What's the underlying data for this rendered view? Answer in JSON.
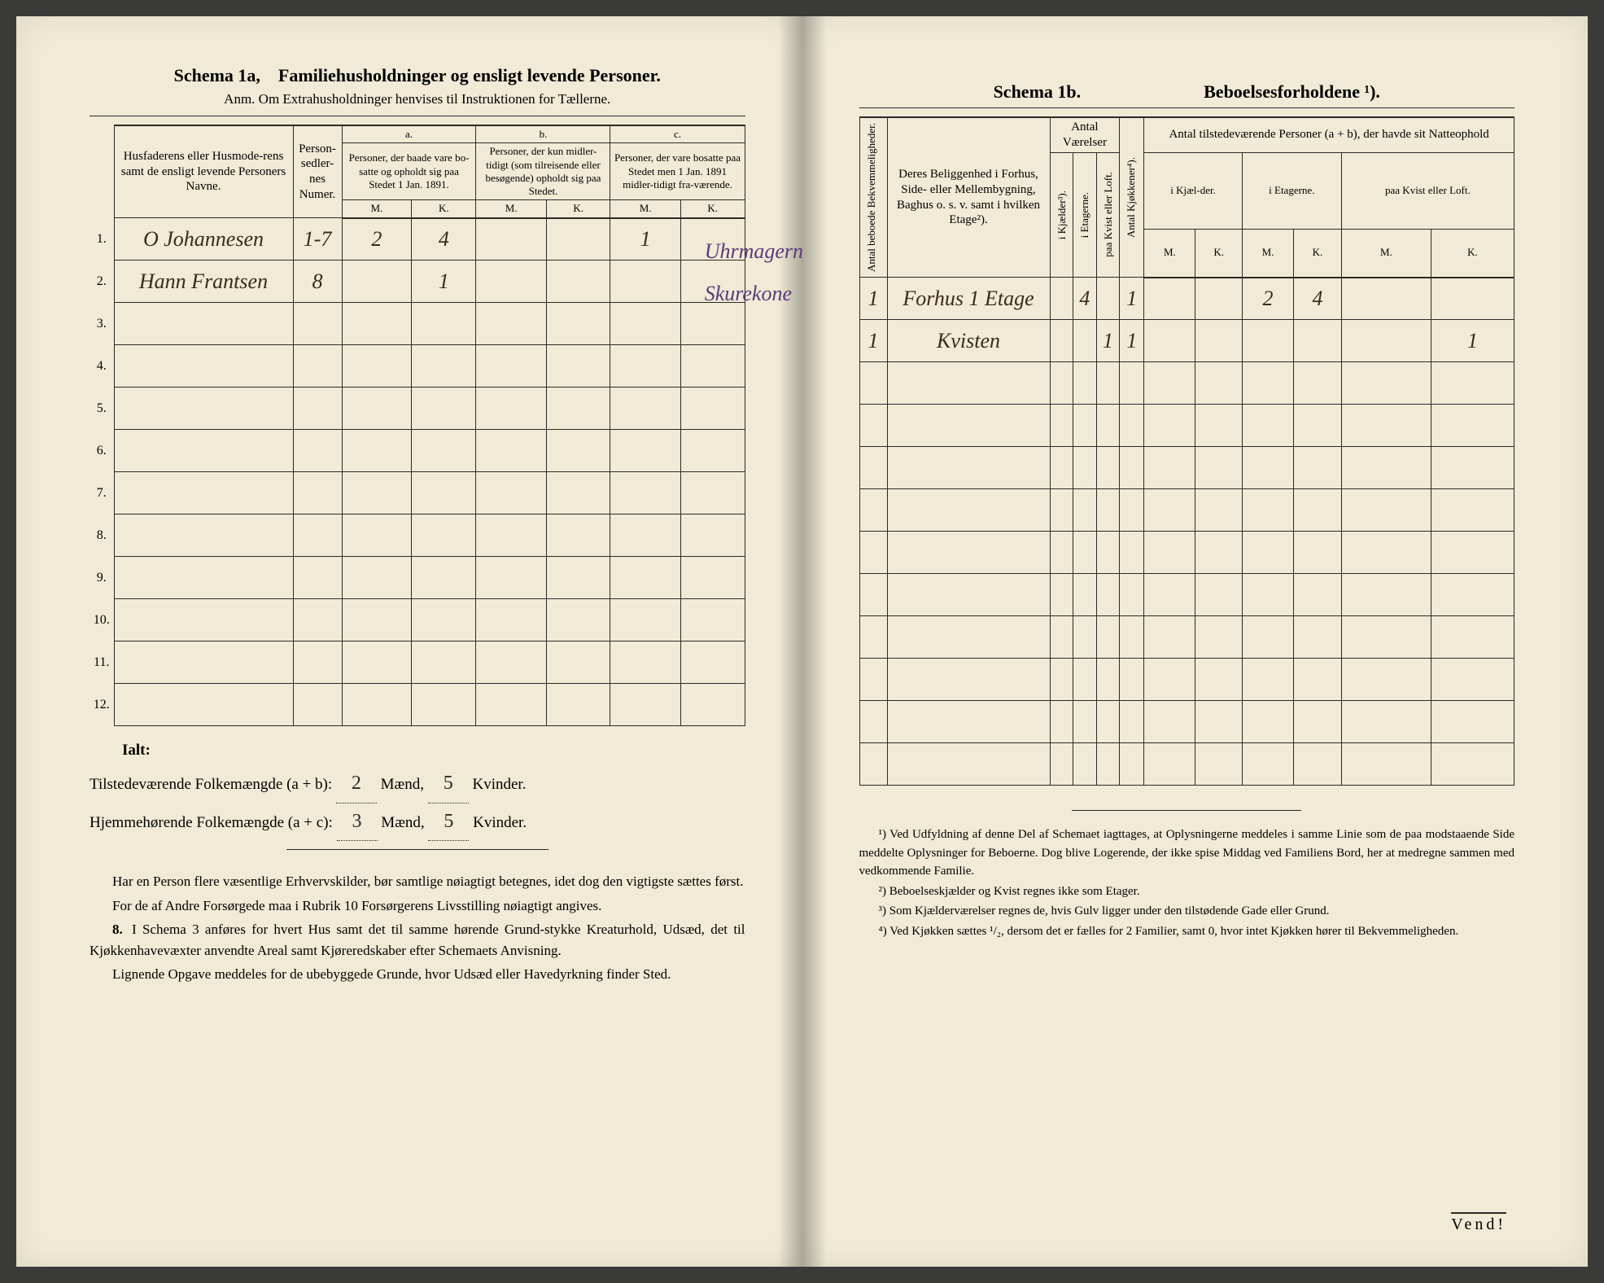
{
  "left": {
    "schema_label": "Schema 1a,",
    "title": "Familiehusholdninger og ensligt levende Personer.",
    "anm": "Anm. Om Extrahusholdninger henvises til Instruktionen for Tællerne.",
    "head_name": "Husfaderens eller Husmode-rens samt de ensligt levende Personers Navne.",
    "head_numer": "Person-sedler-nes Numer.",
    "head_a": "a.",
    "head_a_text": "Personer, der baade vare bo-satte og opholdt sig paa Stedet 1 Jan. 1891.",
    "head_b": "b.",
    "head_b_text": "Personer, der kun midler-tidigt (som tilreisende eller besøgende) opholdt sig paa Stedet.",
    "head_c": "c.",
    "head_c_text": "Personer, der vare bosatte paa Stedet men 1 Jan. 1891 midler-tidigt fra-værende.",
    "M": "M.",
    "K": "K.",
    "rows": [
      {
        "n": "1.",
        "name": "O Johannesen",
        "numer": "1-7",
        "aM": "2",
        "aK": "4",
        "bM": "",
        "bK": "",
        "cM": "1",
        "note": "Uhrmagern"
      },
      {
        "n": "2.",
        "name": "Hann Frantsen",
        "numer": "8",
        "aM": "",
        "aK": "1",
        "bM": "",
        "bK": "",
        "cM": "",
        "note": "Skurekone"
      },
      {
        "n": "3."
      },
      {
        "n": "4."
      },
      {
        "n": "5."
      },
      {
        "n": "6."
      },
      {
        "n": "7."
      },
      {
        "n": "8."
      },
      {
        "n": "9."
      },
      {
        "n": "10."
      },
      {
        "n": "11."
      },
      {
        "n": "12."
      }
    ],
    "ialt": "Ialt:",
    "tot1_label": "Tilstedeværende Folkemængde (a + b):",
    "tot1_m": "2",
    "tot_mlabel": "Mænd,",
    "tot1_k": "5",
    "tot_klabel": "Kvinder.",
    "tot2_label": "Hjemmehørende Folkemængde (a + c):",
    "tot2_m": "3",
    "tot2_k": "5",
    "para1": "Har en Person flere væsentlige Erhvervskilder, bør samtlige nøiagtigt betegnes, idet dog den vigtigste sættes først.",
    "para2": "For de af Andre Forsørgede maa i Rubrik 10 Forsørgerens Livsstilling nøiagtigt angives.",
    "para3num": "8.",
    "para3": "I Schema 3 anføres for hvert Hus samt det til samme hørende Grund-stykke Kreaturhold, Udsæd, det til Kjøkkenhavevæxter anvendte Areal samt Kjøreredskaber efter Schemaets Anvisning.",
    "para4": "Lignende Opgave meddeles for de ubebyggede Grunde, hvor Udsæd eller Havedyrkning finder Sted."
  },
  "right": {
    "schema_label": "Schema 1b.",
    "title": "Beboelsesforholdene ¹).",
    "head_bekv": "Antal beboede Bekvemmeligheder.",
    "head_belig": "Deres Beliggenhed i Forhus, Side- eller Mellembygning, Baghus o. s. v. samt i hvilken Etage²).",
    "head_vaerelser": "Antal Værelser",
    "head_kjokken": "Antal Kjøkkener⁴).",
    "head_personer": "Antal tilstedeværende Personer (a + b), der havde sit Natteophold",
    "sub_kjaelder": "i Kjælder³).",
    "sub_etagerne": "i Etagerne.",
    "sub_kvist": "paa Kvist eller Loft.",
    "sub_ikjael": "i Kjæl-der.",
    "sub_ietag": "i Etagerne.",
    "sub_paakvist": "paa Kvist eller Loft.",
    "M": "M.",
    "K": "K.",
    "rows": [
      {
        "bekv": "1",
        "belig": "Forhus 1 Etage",
        "kj": "",
        "et": "4",
        "kv": "",
        "kjok": "1",
        "pM": "",
        "pK": "",
        "eM": "2",
        "eK": "4",
        "lM": "",
        "lK": ""
      },
      {
        "bekv": "1",
        "belig": "Kvisten",
        "kj": "",
        "et": "",
        "kv": "1",
        "kjok": "1",
        "pM": "",
        "pK": "",
        "eM": "",
        "eK": "",
        "lM": "",
        "lK": "1"
      },
      {},
      {},
      {},
      {},
      {},
      {},
      {},
      {},
      {},
      {}
    ],
    "fn1": "¹) Ved Udfyldning af denne Del af Schemaet iagttages, at Oplysningerne meddeles i samme Linie som de paa modstaaende Side meddelte Oplysninger for Beboerne. Dog blive Logerende, der ikke spise Middag ved Familiens Bord, her at medregne sammen med vedkommende Familie.",
    "fn2": "²) Beboelseskjælder og Kvist regnes ikke som Etager.",
    "fn3": "³) Som Kjælderværelser regnes de, hvis Gulv ligger under den tilstødende Gade eller Grund.",
    "fn4": "⁴) Ved Kjøkken sættes ¹/₂, dersom det er fælles for 2 Familier, samt 0, hvor intet Kjøkken hører til Bekvemmeligheden.",
    "vend": "Vend!"
  }
}
